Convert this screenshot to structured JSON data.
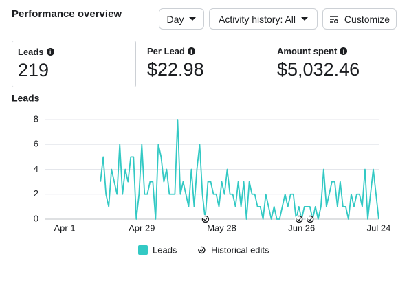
{
  "header": {
    "title": "Performance overview"
  },
  "controls": [
    "Day",
    "Activity history: All",
    "Customize"
  ],
  "metrics": [
    {
      "label": "Leads",
      "value": "219"
    },
    {
      "label": "Per Lead",
      "value": "$22.98"
    },
    {
      "label": "Amount spent",
      "value": "$5,032.46"
    }
  ],
  "chart_data": {
    "type": "line",
    "title": "Leads",
    "x": [
      "Apr 14",
      "Apr 15",
      "Apr 16",
      "Apr 17",
      "Apr 18",
      "Apr 19",
      "Apr 20",
      "Apr 21",
      "Apr 22",
      "Apr 23",
      "Apr 24",
      "Apr 25",
      "Apr 26",
      "Apr 27",
      "Apr 28",
      "Apr 29",
      "Apr 30",
      "May 1",
      "May 2",
      "May 3",
      "May 4",
      "May 5",
      "May 6",
      "May 7",
      "May 8",
      "May 9",
      "May 10",
      "May 11",
      "May 12",
      "May 13",
      "May 14",
      "May 15",
      "May 16",
      "May 17",
      "May 18",
      "May 19",
      "May 20",
      "May 21",
      "May 22",
      "May 23",
      "May 24",
      "May 25",
      "May 26",
      "May 27",
      "May 28",
      "May 29",
      "May 30",
      "May 31",
      "Jun 1",
      "Jun 2",
      "Jun 3",
      "Jun 4",
      "Jun 5",
      "Jun 6",
      "Jun 7",
      "Jun 8",
      "Jun 9",
      "Jun 10",
      "Jun 11",
      "Jun 12",
      "Jun 13",
      "Jun 14",
      "Jun 15",
      "Jun 16",
      "Jun 17",
      "Jun 18",
      "Jun 19",
      "Jun 20",
      "Jun 21",
      "Jun 22",
      "Jun 23",
      "Jun 24",
      "Jun 25",
      "Jun 26",
      "Jun 27",
      "Jun 28",
      "Jun 29",
      "Jun 30",
      "Jul 1",
      "Jul 2",
      "Jul 3",
      "Jul 4",
      "Jul 5",
      "Jul 6",
      "Jul 7",
      "Jul 8",
      "Jul 9",
      "Jul 10",
      "Jul 11",
      "Jul 12",
      "Jul 13",
      "Jul 14",
      "Jul 15",
      "Jul 16",
      "Jul 17",
      "Jul 18",
      "Jul 19",
      "Jul 20",
      "Jul 21",
      "Jul 22",
      "Jul 23",
      "Jul 24"
    ],
    "series": [
      {
        "name": "Leads",
        "color": "#33c9c4",
        "values": [
          3,
          5,
          2,
          1,
          4,
          3,
          2,
          6,
          2,
          4,
          3,
          5,
          5,
          0,
          2,
          6,
          2,
          2,
          3,
          3,
          0,
          6,
          5,
          3,
          4,
          2,
          2,
          2,
          8,
          2,
          3,
          2,
          1,
          4,
          1,
          4,
          6,
          2,
          0,
          3,
          3,
          2,
          2,
          1,
          3,
          2,
          4,
          2,
          2,
          1,
          3,
          1,
          3,
          0,
          3,
          2,
          2,
          1,
          1,
          0,
          2,
          1,
          0,
          1,
          0,
          0,
          1,
          2,
          1,
          2,
          2,
          0,
          1,
          0,
          1,
          1,
          1,
          0,
          1,
          0,
          1,
          4,
          1,
          2,
          3,
          3,
          1,
          3,
          1,
          1,
          0,
          2,
          1,
          2,
          2,
          1,
          4,
          0,
          2,
          4,
          2,
          0
        ]
      }
    ],
    "edit_markers": {
      "name": "Historical edits",
      "x": [
        "May 22",
        "Jun 25",
        "Jun 29"
      ]
    },
    "xlim": [
      "Mar 24",
      "Jul 24"
    ],
    "xticks": [
      "Apr 1",
      "Apr 29",
      "May 28",
      "Jun 26",
      "Jul 24"
    ],
    "ylim": [
      0,
      8
    ],
    "yticks": [
      0,
      2,
      4,
      6,
      8
    ],
    "grid": true
  }
}
